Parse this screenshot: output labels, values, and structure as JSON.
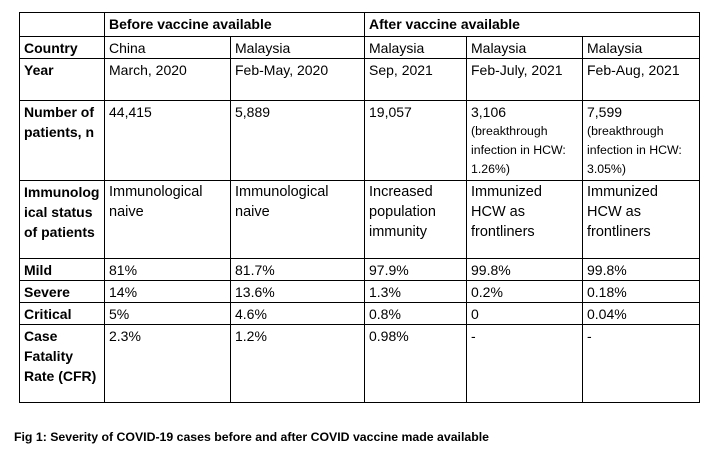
{
  "table": {
    "header": {
      "before": "Before vaccine available",
      "after": "After vaccine available"
    },
    "rows": {
      "country": {
        "label": "Country",
        "values": [
          "China",
          "Malaysia",
          "Malaysia",
          "Malaysia",
          "Malaysia"
        ]
      },
      "year": {
        "label": "Year",
        "values": [
          "March, 2020",
          "Feb-May, 2020",
          "Sep, 2021",
          "Feb-July, 2021",
          "Feb-Aug, 2021"
        ]
      },
      "patients": {
        "label": "Number of patients, n",
        "values": [
          "44,415",
          "5,889",
          "19,057",
          "3,106",
          "7,599"
        ],
        "notes": [
          "",
          "",
          "",
          "(breakthrough infection in HCW: 1.26%)",
          "(breakthrough infection in HCW: 3.05%)"
        ]
      },
      "immunological": {
        "label": "Immunological status of patients",
        "values": [
          "Immunological naive",
          "Immunological naive",
          "Increased population immunity",
          "Immunized HCW as frontliners",
          "Immunized HCW as frontliners"
        ]
      },
      "mild": {
        "label": "Mild",
        "values": [
          "81%",
          "81.7%",
          "97.9%",
          "99.8%",
          "99.8%"
        ]
      },
      "severe": {
        "label": "Severe",
        "values": [
          "14%",
          "13.6%",
          "1.3%",
          "0.2%",
          "0.18%"
        ]
      },
      "critical": {
        "label": "Critical",
        "values": [
          "5%",
          "4.6%",
          "0.8%",
          "0",
          "0.04%"
        ]
      },
      "cfr": {
        "label": "Case Fatality Rate (CFR)",
        "values": [
          "2.3%",
          "1.2%",
          "0.98%",
          "-",
          "-"
        ]
      }
    }
  },
  "caption": "Fig 1: Severity of COVID-19 cases before and after COVID vaccine made available"
}
